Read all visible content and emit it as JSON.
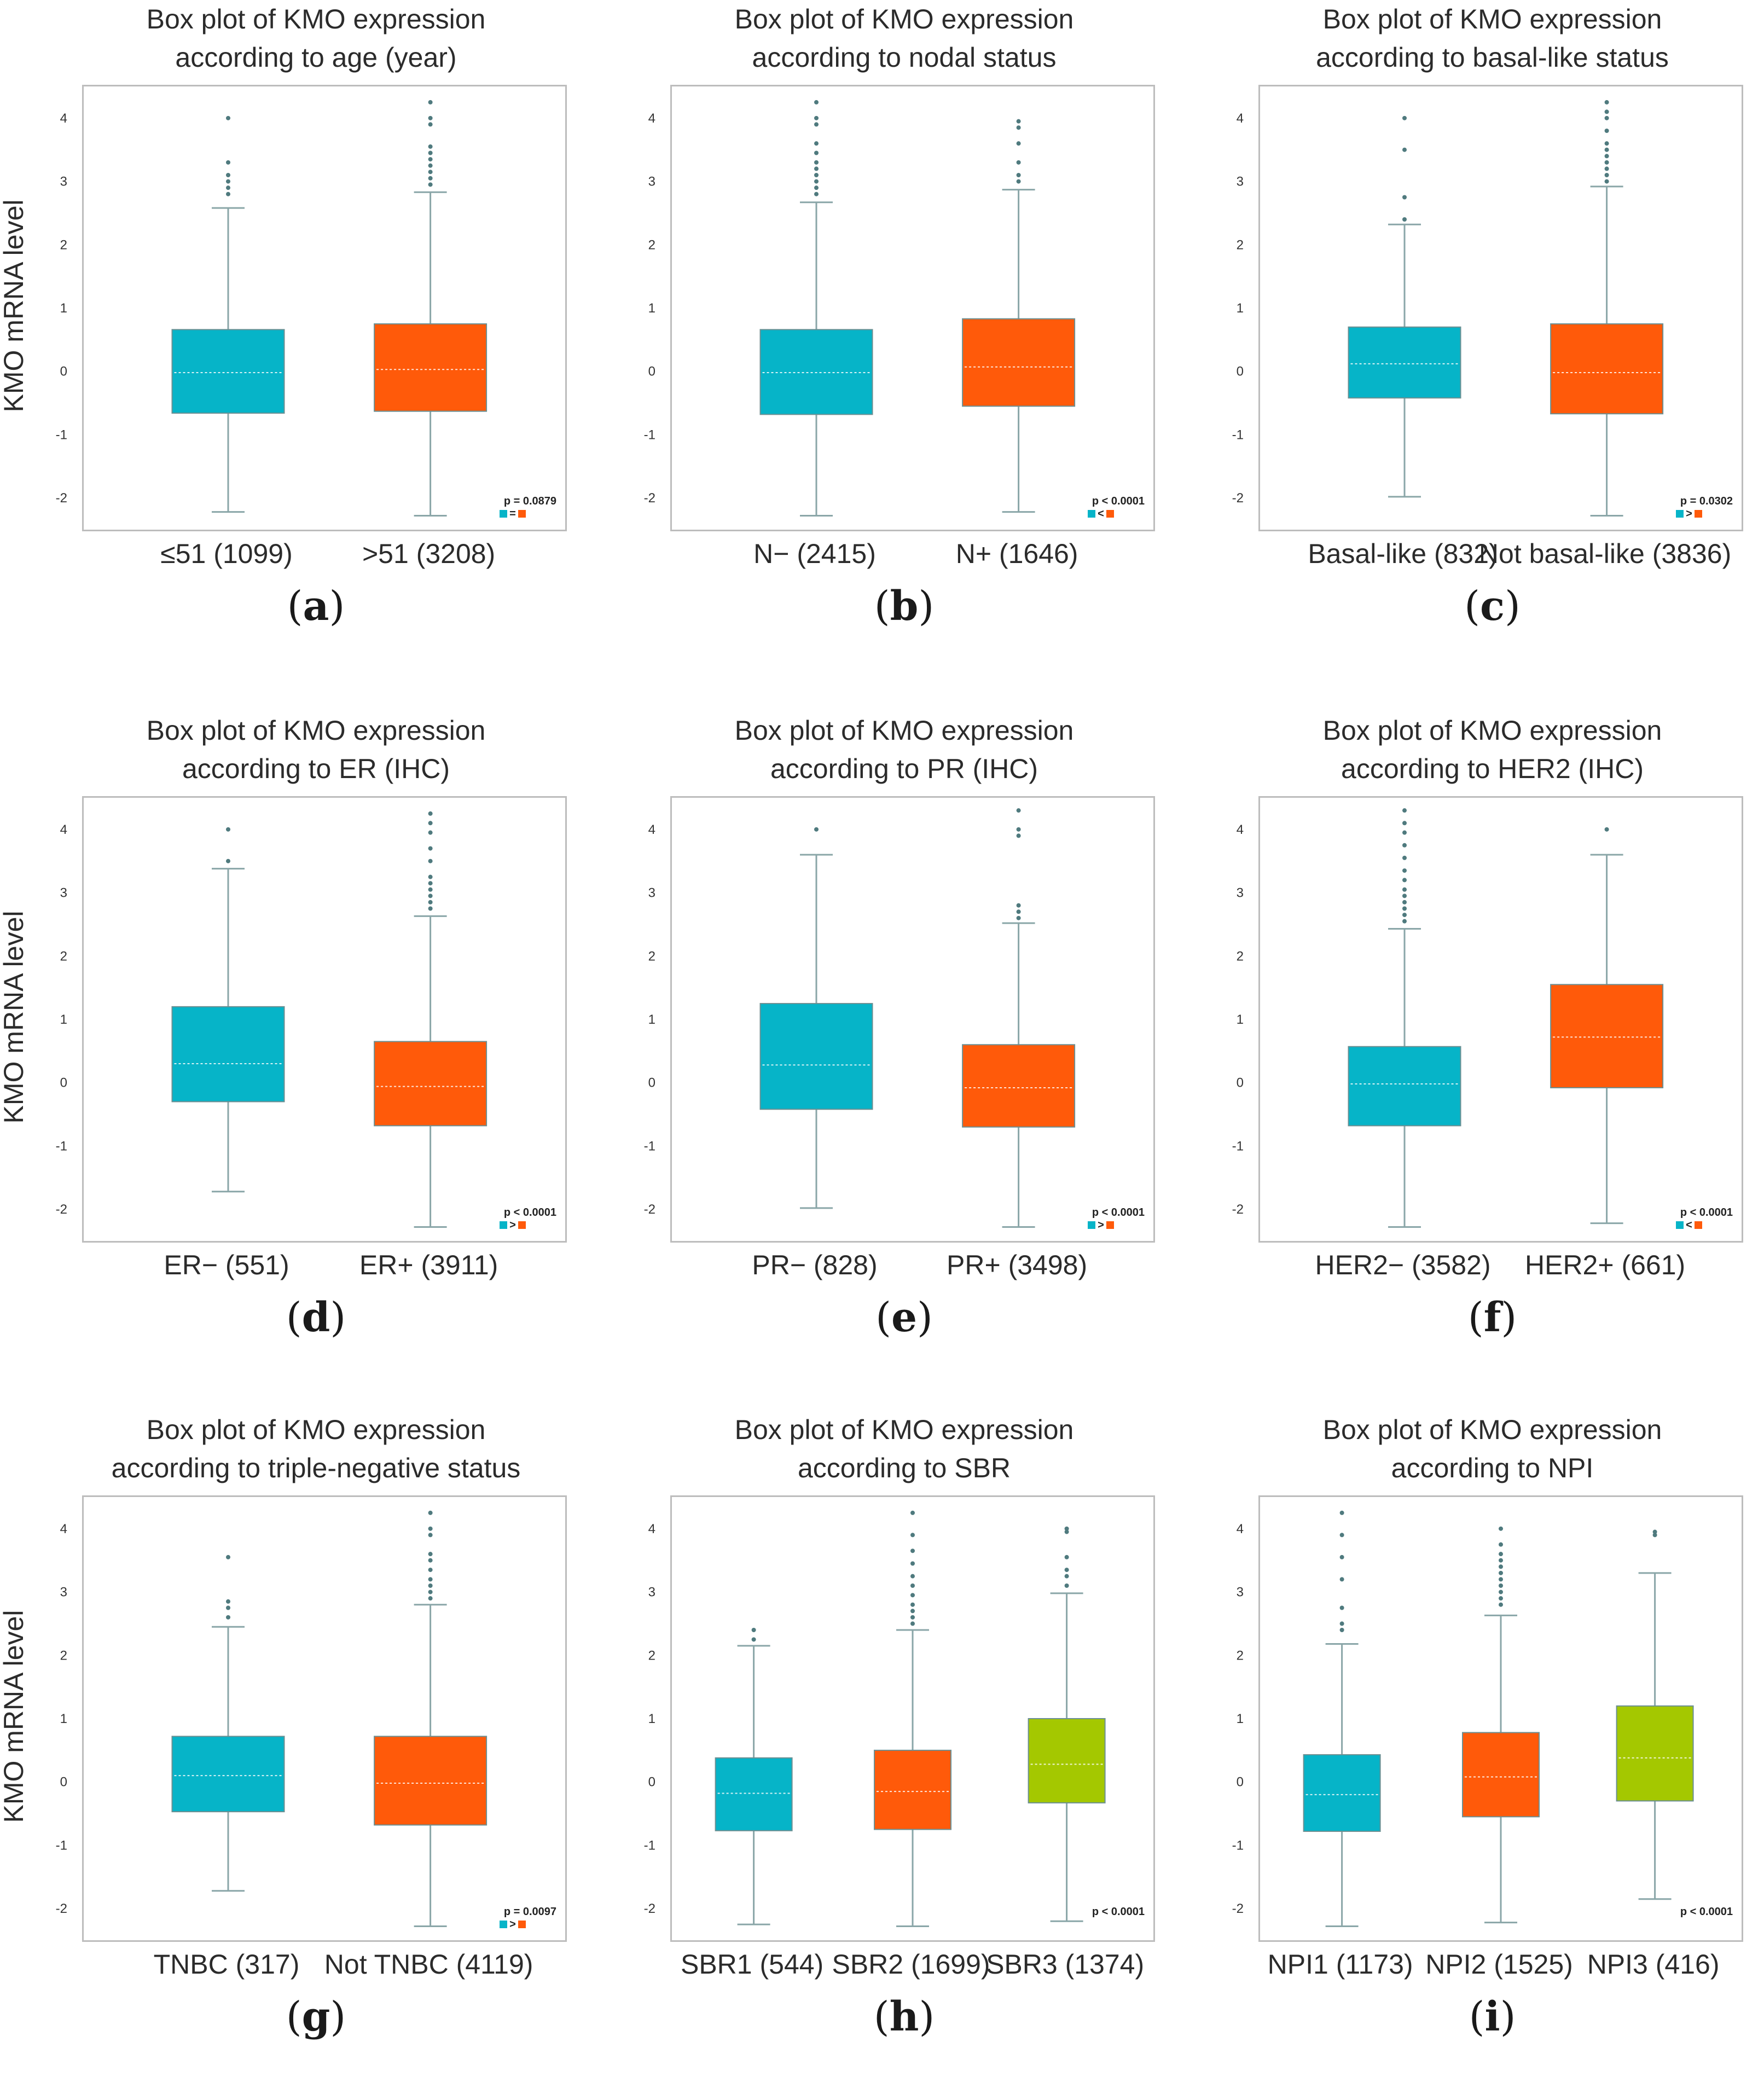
{
  "colors": {
    "cyan": "#06b4c8",
    "orange": "#ff5a0a",
    "green": "#a4c800",
    "whisker": "#8aa6a8",
    "frame": "#bdbdbd"
  },
  "y_axis_label": "KMO mRNA level",
  "chart_data": [
    {
      "id": "a",
      "type": "box",
      "title": [
        "Box plot of KMO expression",
        "according to age (year)"
      ],
      "ylabel": "KMO mRNA level",
      "ylim": [
        -2.5,
        4.5
      ],
      "yticks": [
        -2,
        -1,
        0,
        1,
        2,
        3,
        4
      ],
      "groups": [
        {
          "label": "≤51 (1099)",
          "color": "cyan",
          "q1": -0.66,
          "median": -0.02,
          "q3": 0.66,
          "whisker_low": -2.22,
          "whisker_high": 2.58,
          "outliers": [
            2.8,
            2.9,
            3.0,
            3.1,
            3.3,
            4.0
          ]
        },
        {
          "label": ">51 (3208)",
          "color": "orange",
          "q1": -0.63,
          "median": 0.03,
          "q3": 0.75,
          "whisker_low": -2.28,
          "whisker_high": 2.83,
          "outliers": [
            2.95,
            3.05,
            3.15,
            3.25,
            3.35,
            3.45,
            3.55,
            3.9,
            4.0,
            4.25
          ]
        }
      ],
      "pvalue": "p = 0.0879",
      "relation": "="
    },
    {
      "id": "b",
      "type": "box",
      "title": [
        "Box plot of KMO expression",
        "according to nodal status"
      ],
      "ylabel": "",
      "ylim": [
        -2.5,
        4.5
      ],
      "yticks": [
        -2,
        -1,
        0,
        1,
        2,
        3,
        4
      ],
      "groups": [
        {
          "label": "N− (2415)",
          "color": "cyan",
          "q1": -0.68,
          "median": -0.02,
          "q3": 0.66,
          "whisker_low": -2.28,
          "whisker_high": 2.67,
          "outliers": [
            2.8,
            2.9,
            3.0,
            3.1,
            3.2,
            3.3,
            3.45,
            3.6,
            3.9,
            4.0,
            4.25
          ]
        },
        {
          "label": "N+ (1646)",
          "color": "orange",
          "q1": -0.55,
          "median": 0.07,
          "q3": 0.83,
          "whisker_low": -2.22,
          "whisker_high": 2.87,
          "outliers": [
            3.0,
            3.1,
            3.3,
            3.6,
            3.85,
            3.95
          ]
        }
      ],
      "pvalue": "p < 0.0001",
      "relation": "<"
    },
    {
      "id": "c",
      "type": "box",
      "title": [
        "Box plot of KMO expression",
        "according to basal-like status"
      ],
      "ylabel": "",
      "ylim": [
        -2.5,
        4.5
      ],
      "yticks": [
        -2,
        -1,
        0,
        1,
        2,
        3,
        4
      ],
      "groups": [
        {
          "label": "Basal-like (832)",
          "color": "cyan",
          "q1": -0.42,
          "median": 0.12,
          "q3": 0.7,
          "whisker_low": -1.98,
          "whisker_high": 2.32,
          "outliers": [
            2.4,
            2.75,
            3.5,
            4.0
          ]
        },
        {
          "label": "Not basal-like (3836)",
          "color": "orange",
          "q1": -0.67,
          "median": -0.02,
          "q3": 0.75,
          "whisker_low": -2.28,
          "whisker_high": 2.92,
          "outliers": [
            3.0,
            3.1,
            3.2,
            3.3,
            3.4,
            3.5,
            3.6,
            3.8,
            4.0,
            4.1,
            4.25
          ]
        }
      ],
      "pvalue": "p = 0.0302",
      "relation": ">"
    },
    {
      "id": "d",
      "type": "box",
      "title": [
        "Box plot of KMO expression",
        "according to ER (IHC)"
      ],
      "ylabel": "KMO mRNA level",
      "ylim": [
        -2.5,
        4.5
      ],
      "yticks": [
        -2,
        -1,
        0,
        1,
        2,
        3,
        4
      ],
      "groups": [
        {
          "label": "ER− (551)",
          "color": "cyan",
          "q1": -0.3,
          "median": 0.3,
          "q3": 1.2,
          "whisker_low": -1.72,
          "whisker_high": 3.38,
          "outliers": [
            3.5,
            4.0
          ]
        },
        {
          "label": "ER+ (3911)",
          "color": "orange",
          "q1": -0.68,
          "median": -0.06,
          "q3": 0.65,
          "whisker_low": -2.28,
          "whisker_high": 2.63,
          "outliers": [
            2.75,
            2.85,
            2.95,
            3.05,
            3.15,
            3.25,
            3.5,
            3.7,
            3.95,
            4.1,
            4.25
          ]
        }
      ],
      "pvalue": "p < 0.0001",
      "relation": ">"
    },
    {
      "id": "e",
      "type": "box",
      "title": [
        "Box plot of KMO expression",
        "according to PR (IHC)"
      ],
      "ylabel": "",
      "ylim": [
        -2.5,
        4.5
      ],
      "yticks": [
        -2,
        -1,
        0,
        1,
        2,
        3,
        4
      ],
      "groups": [
        {
          "label": "PR− (828)",
          "color": "cyan",
          "q1": -0.42,
          "median": 0.28,
          "q3": 1.25,
          "whisker_low": -1.98,
          "whisker_high": 3.6,
          "outliers": [
            4.0
          ]
        },
        {
          "label": "PR+ (3498)",
          "color": "orange",
          "q1": -0.7,
          "median": -0.08,
          "q3": 0.6,
          "whisker_low": -2.28,
          "whisker_high": 2.52,
          "outliers": [
            2.6,
            2.7,
            2.8,
            3.9,
            4.0,
            4.3
          ]
        }
      ],
      "pvalue": "p < 0.0001",
      "relation": ">"
    },
    {
      "id": "f",
      "type": "box",
      "title": [
        "Box plot of KMO expression",
        "according to HER2 (IHC)"
      ],
      "ylabel": "",
      "ylim": [
        -2.5,
        4.5
      ],
      "yticks": [
        -2,
        -1,
        0,
        1,
        2,
        3,
        4
      ],
      "groups": [
        {
          "label": "HER2− (3582)",
          "color": "cyan",
          "q1": -0.68,
          "median": -0.02,
          "q3": 0.57,
          "whisker_low": -2.28,
          "whisker_high": 2.43,
          "outliers": [
            2.55,
            2.65,
            2.75,
            2.85,
            2.95,
            3.05,
            3.2,
            3.35,
            3.55,
            3.75,
            3.95,
            4.1,
            4.3
          ]
        },
        {
          "label": "HER2+ (661)",
          "color": "orange",
          "q1": -0.08,
          "median": 0.72,
          "q3": 1.55,
          "whisker_low": -2.22,
          "whisker_high": 3.6,
          "outliers": [
            4.0
          ]
        }
      ],
      "pvalue": "p < 0.0001",
      "relation": "<"
    },
    {
      "id": "g",
      "type": "box",
      "title": [
        "Box plot of KMO expression",
        "according to triple-negative status"
      ],
      "ylabel": "KMO mRNA level",
      "ylim": [
        -2.5,
        4.5
      ],
      "yticks": [
        -2,
        -1,
        0,
        1,
        2,
        3,
        4
      ],
      "groups": [
        {
          "label": "TNBC (317)",
          "color": "cyan",
          "q1": -0.47,
          "median": 0.1,
          "q3": 0.72,
          "whisker_low": -1.72,
          "whisker_high": 2.45,
          "outliers": [
            2.6,
            2.75,
            2.85,
            3.55
          ]
        },
        {
          "label": "Not TNBC (4119)",
          "color": "orange",
          "q1": -0.68,
          "median": -0.02,
          "q3": 0.72,
          "whisker_low": -2.28,
          "whisker_high": 2.8,
          "outliers": [
            2.9,
            3.0,
            3.1,
            3.2,
            3.35,
            3.5,
            3.6,
            3.9,
            4.0,
            4.25
          ]
        }
      ],
      "pvalue": "p = 0.0097",
      "relation": ">"
    },
    {
      "id": "h",
      "type": "box",
      "title": [
        "Box plot of KMO expression",
        "according to SBR"
      ],
      "ylabel": "",
      "ylim": [
        -2.5,
        4.5
      ],
      "yticks": [
        -2,
        -1,
        0,
        1,
        2,
        3,
        4
      ],
      "groups": [
        {
          "label": "SBR1 (544)",
          "color": "cyan",
          "q1": -0.77,
          "median": -0.18,
          "q3": 0.38,
          "whisker_low": -2.25,
          "whisker_high": 2.15,
          "outliers": [
            2.25,
            2.4
          ]
        },
        {
          "label": "SBR2 (1699)",
          "color": "orange",
          "q1": -0.75,
          "median": -0.15,
          "q3": 0.5,
          "whisker_low": -2.28,
          "whisker_high": 2.4,
          "outliers": [
            2.5,
            2.6,
            2.7,
            2.8,
            2.95,
            3.1,
            3.25,
            3.45,
            3.65,
            3.9,
            4.25
          ]
        },
        {
          "label": "SBR3 (1374)",
          "color": "green",
          "q1": -0.33,
          "median": 0.28,
          "q3": 1.0,
          "whisker_low": -2.2,
          "whisker_high": 2.98,
          "outliers": [
            3.1,
            3.25,
            3.35,
            3.55,
            3.95,
            4.0
          ]
        }
      ],
      "pvalue": "p < 0.0001",
      "relation": ""
    },
    {
      "id": "i",
      "type": "box",
      "title": [
        "Box plot of KMO expression",
        "according to NPI"
      ],
      "ylabel": "",
      "ylim": [
        -2.5,
        4.5
      ],
      "yticks": [
        -2,
        -1,
        0,
        1,
        2,
        3,
        4
      ],
      "groups": [
        {
          "label": "NPI1 (1173)",
          "color": "cyan",
          "q1": -0.78,
          "median": -0.2,
          "q3": 0.43,
          "whisker_low": -2.28,
          "whisker_high": 2.18,
          "outliers": [
            2.4,
            2.5,
            2.75,
            3.2,
            3.55,
            3.9,
            4.25
          ]
        },
        {
          "label": "NPI2 (1525)",
          "color": "orange",
          "q1": -0.55,
          "median": 0.08,
          "q3": 0.78,
          "whisker_low": -2.22,
          "whisker_high": 2.63,
          "outliers": [
            2.8,
            2.9,
            3.0,
            3.1,
            3.2,
            3.3,
            3.4,
            3.5,
            3.6,
            3.75,
            4.0
          ]
        },
        {
          "label": "NPI3 (416)",
          "color": "green",
          "q1": -0.3,
          "median": 0.38,
          "q3": 1.2,
          "whisker_low": -1.85,
          "whisker_high": 3.3,
          "outliers": [
            3.9,
            3.95
          ]
        }
      ],
      "pvalue": "p < 0.0001",
      "relation": ""
    }
  ],
  "panel_letters": [
    "(a)",
    "(b)",
    "(c)",
    "(d)",
    "(e)",
    "(f)",
    "(g)",
    "(h)",
    "(i)"
  ]
}
